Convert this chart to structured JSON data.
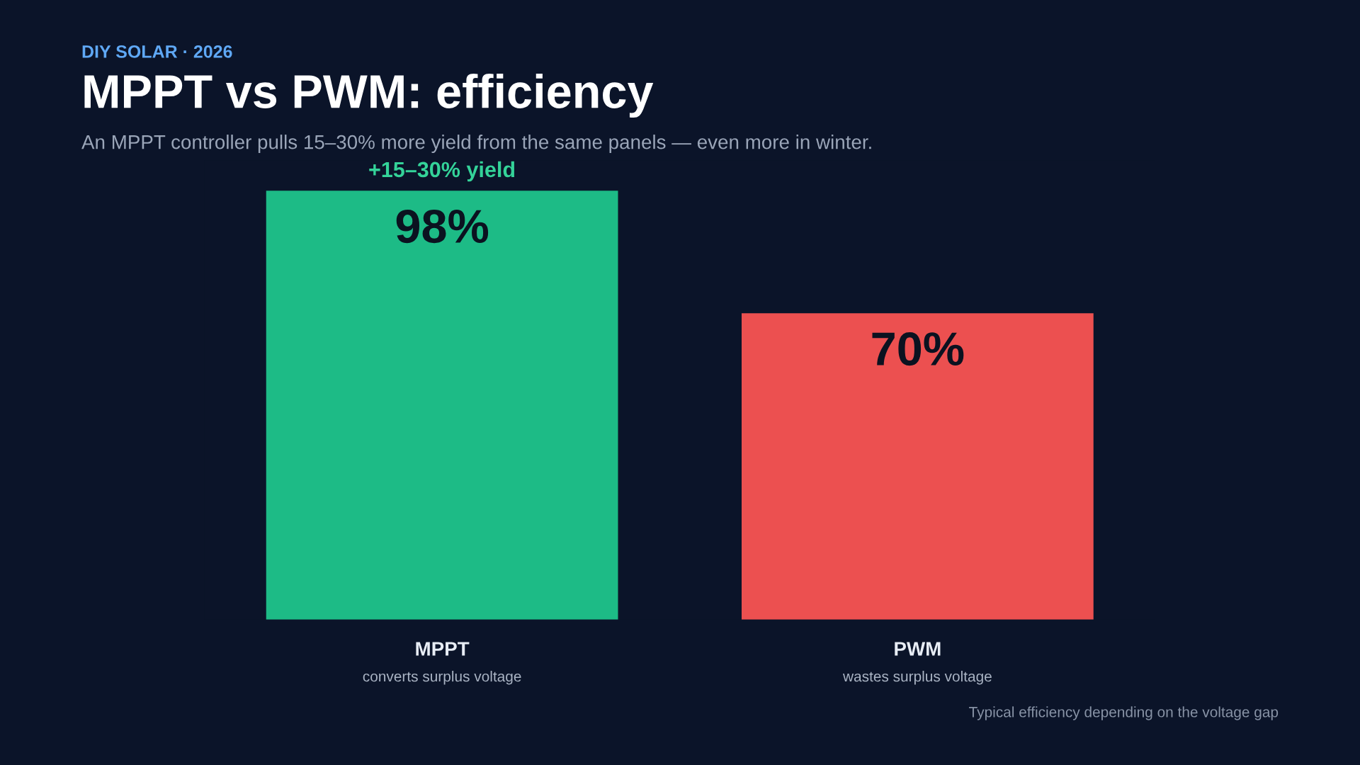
{
  "chart_data": {
    "type": "bar",
    "title": "MPPT vs PWM: efficiency",
    "subtitle": "An MPPT controller pulls 15–30% more yield from the same panels — even more in winter.",
    "categories": [
      "MPPT\nconverts surplus voltage",
      "PWM\nwastes surplus voltage"
    ],
    "values": [
      98,
      70
    ],
    "colors": [
      "#1dbb86",
      "#ec5050"
    ],
    "value_labels": [
      "98%",
      "70%"
    ],
    "annotations": [
      "DIY SOLAR · 2026",
      "+15–30% yield",
      "Typical efficiency depending on the voltage gap"
    ]
  }
}
